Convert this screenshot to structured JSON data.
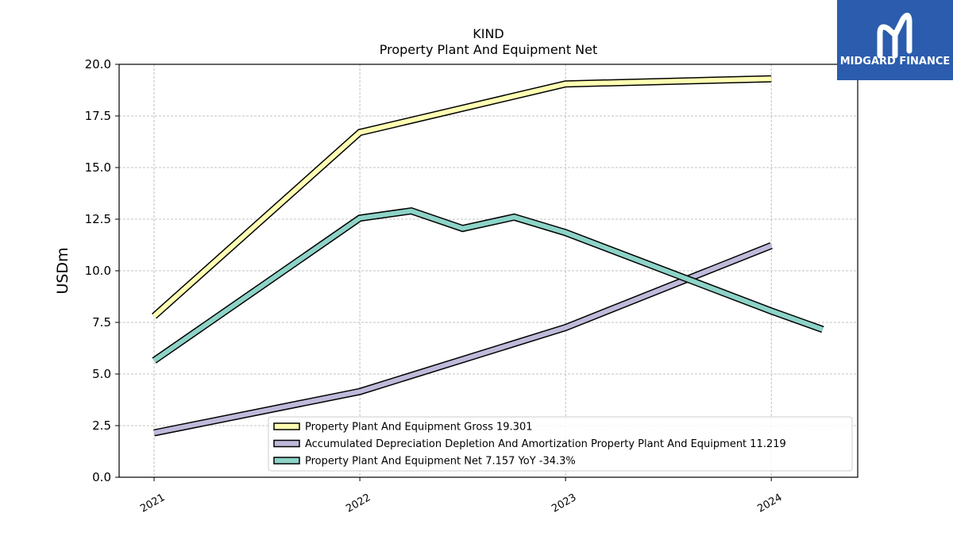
{
  "chart_data": {
    "type": "line",
    "title": "KIND",
    "subtitle": "Property Plant And Equipment Net",
    "ylabel": "USDm",
    "ylim": [
      0,
      20
    ],
    "yticks": [
      "0.0",
      "2.5",
      "5.0",
      "7.5",
      "10.0",
      "12.5",
      "15.0",
      "17.5",
      "20.0"
    ],
    "xlim": [
      2020.83,
      2024.42
    ],
    "xticks": [
      "2021",
      "2022",
      "2023",
      "2024"
    ],
    "grid": true,
    "legend_position": "lower-right",
    "series": [
      {
        "name": "Property Plant And Equipment Gross",
        "legend_label": "Property Plant And Equipment Gross  19.301",
        "color": "#ffffb3",
        "points": [
          [
            2021.0,
            7.8
          ],
          [
            2022.0,
            16.7
          ],
          [
            2023.0,
            19.05
          ],
          [
            2024.0,
            19.3
          ]
        ]
      },
      {
        "name": "Accumulated Depreciation Depletion And Amortization Property Plant And Equipment",
        "legend_label": "Accumulated Depreciation Depletion And Amortization Property Plant And Equipment  11.219",
        "color": "#bebada",
        "points": [
          [
            2021.0,
            2.15
          ],
          [
            2022.0,
            4.15
          ],
          [
            2023.0,
            7.25
          ],
          [
            2024.0,
            11.22
          ]
        ]
      },
      {
        "name": "Property Plant And Equipment Net",
        "legend_label": "Property Plant And Equipment Net  7.157 YoY -34.3%",
        "color": "#8dd3c7",
        "points": [
          [
            2021.0,
            5.65
          ],
          [
            2022.0,
            12.55
          ],
          [
            2022.25,
            12.9
          ],
          [
            2022.5,
            12.05
          ],
          [
            2022.75,
            12.6
          ],
          [
            2023.0,
            11.85
          ],
          [
            2024.0,
            8.05
          ],
          [
            2024.25,
            7.157
          ]
        ]
      }
    ]
  },
  "brand": {
    "name": "MIDGARD FINANCE",
    "bg_color": "#2b5cad",
    "logo_icon": "midgard-m-logo-icon"
  }
}
